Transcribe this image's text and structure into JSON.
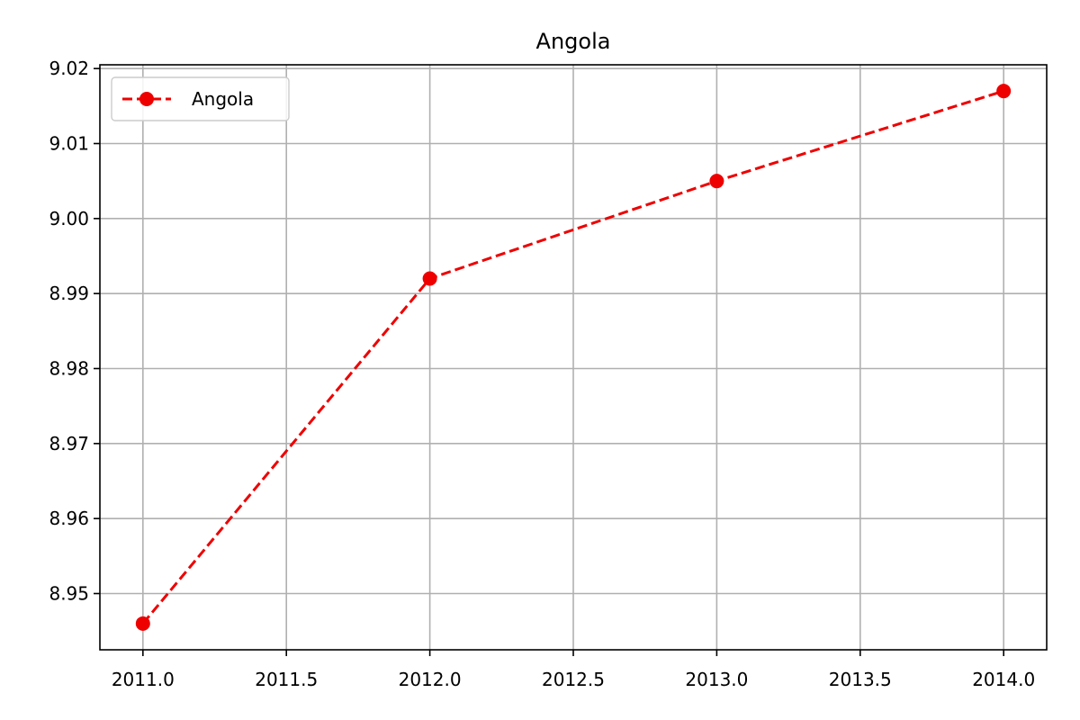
{
  "chart_data": {
    "type": "line",
    "title": "Angola",
    "xlabel": "",
    "ylabel": "",
    "x": [
      2011,
      2012,
      2013,
      2014
    ],
    "series": [
      {
        "name": "Angola",
        "values": [
          8.946,
          8.992,
          9.005,
          9.017
        ],
        "color": "#ee0000",
        "line_style": "dashed",
        "marker": "circle"
      }
    ],
    "xlim": [
      2010.85,
      2014.15
    ],
    "ylim": [
      8.9425,
      9.0205
    ],
    "x_ticks": [
      2011.0,
      2011.5,
      2012.0,
      2012.5,
      2013.0,
      2013.5,
      2014.0
    ],
    "x_tick_labels": [
      "2011.0",
      "2011.5",
      "2012.0",
      "2012.5",
      "2013.0",
      "2013.5",
      "2014.0"
    ],
    "y_ticks": [
      8.95,
      8.96,
      8.97,
      8.98,
      8.99,
      9.0,
      9.01,
      9.02
    ],
    "y_tick_labels": [
      "8.95",
      "8.96",
      "8.97",
      "8.98",
      "8.99",
      "9.00",
      "9.01",
      "9.02"
    ],
    "grid": true,
    "legend_position": "top-left",
    "grid_color": "#b0b0b0"
  }
}
